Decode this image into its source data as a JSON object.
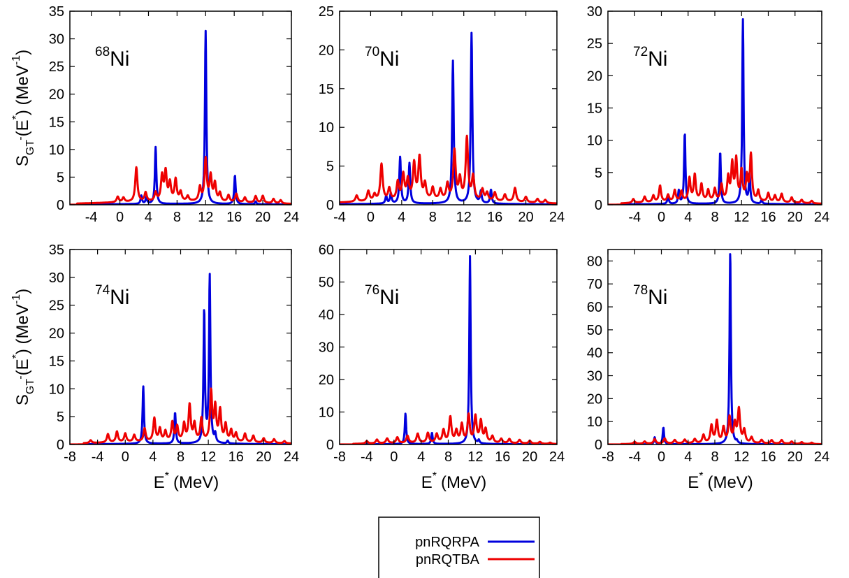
{
  "colors": {
    "pnRQRPA": "#0000dd",
    "pnRQTBA": "#ee0000",
    "axis": "#000000"
  },
  "shared": {
    "ylabel_main": "S",
    "ylabel_sub": "GT",
    "ylabel_sup": "-",
    "ylabel_rest": "(E",
    "ylabel_star": "*",
    "ylabel_unit": ") (MeV",
    "ylabel_unit_sup": "-1",
    "ylabel_close": ")",
    "xlabel_main": "E",
    "xlabel_star": "*",
    "xlabel_unit": "(MeV)"
  },
  "legend": {
    "entries": [
      {
        "label": "pnRQRPA",
        "series": "pnRQRPA"
      },
      {
        "label": "pnRQTBA",
        "series": "pnRQTBA"
      }
    ]
  },
  "chart_data": [
    {
      "type": "line",
      "nucleus_mass": "68",
      "nucleus_symbol": "Ni",
      "xlim": [
        -7,
        24
      ],
      "ylim": [
        0,
        35
      ],
      "xticks": [
        "-4",
        "0",
        "4",
        "8",
        "12",
        "16",
        "20",
        "24"
      ],
      "yticks": [
        "0",
        "5",
        "10",
        "15",
        "20",
        "25",
        "30",
        "35"
      ],
      "show_ylabel": true,
      "show_xlabel": false,
      "series": [
        {
          "name": "pnRQRPA",
          "width": 0.12,
          "base": 0.15,
          "peaks": [
            [
              3.0,
              1.5
            ],
            [
              3.7,
              1.2
            ],
            [
              5.0,
              10.3
            ],
            [
              12.0,
              31.3
            ],
            [
              16.1,
              5.2
            ],
            [
              19.0,
              0.5
            ]
          ]
        },
        {
          "name": "pnRQTBA",
          "width": 0.18,
          "base": 0.6,
          "peaks": [
            [
              -0.3,
              1.0
            ],
            [
              0.5,
              0.8
            ],
            [
              2.3,
              6.2
            ],
            [
              3.6,
              1.6
            ],
            [
              5.0,
              1.5
            ],
            [
              5.9,
              4.5
            ],
            [
              6.4,
              5.2
            ],
            [
              7.0,
              3.2
            ],
            [
              7.8,
              3.9
            ],
            [
              8.5,
              1.6
            ],
            [
              9.5,
              0.9
            ],
            [
              11.2,
              2.5
            ],
            [
              12.0,
              7.6
            ],
            [
              12.7,
              4.5
            ],
            [
              13.3,
              3.2
            ],
            [
              14.0,
              1.5
            ],
            [
              15.2,
              1.2
            ],
            [
              16.3,
              1.5
            ],
            [
              17.5,
              0.9
            ],
            [
              19.0,
              1.2
            ],
            [
              20.0,
              1.3
            ],
            [
              21.5,
              0.8
            ],
            [
              22.5,
              0.6
            ]
          ]
        }
      ]
    },
    {
      "type": "line",
      "nucleus_mass": "70",
      "nucleus_symbol": "Ni",
      "xlim": [
        -4,
        24
      ],
      "ylim": [
        0,
        25
      ],
      "xticks": [
        "-4",
        "0",
        "4",
        "8",
        "12",
        "16",
        "20",
        "24"
      ],
      "yticks": [
        "0",
        "5",
        "10",
        "15",
        "20",
        "25"
      ],
      "show_ylabel": false,
      "show_xlabel": false,
      "series": [
        {
          "name": "pnRQRPA",
          "width": 0.12,
          "base": 0.15,
          "peaks": [
            [
              2.0,
              1.0
            ],
            [
              2.6,
              1.3
            ],
            [
              3.8,
              6.0
            ],
            [
              5.0,
              5.2
            ],
            [
              10.6,
              18.4
            ],
            [
              13.0,
              22.0
            ],
            [
              14.2,
              1.5
            ],
            [
              15.5,
              1.8
            ]
          ]
        },
        {
          "name": "pnRQTBA",
          "width": 0.18,
          "base": 0.6,
          "peaks": [
            [
              -1.8,
              0.8
            ],
            [
              -0.3,
              1.3
            ],
            [
              0.5,
              0.8
            ],
            [
              1.4,
              4.7
            ],
            [
              2.4,
              1.5
            ],
            [
              3.5,
              2.3
            ],
            [
              4.2,
              3.2
            ],
            [
              4.8,
              2.5
            ],
            [
              5.6,
              4.6
            ],
            [
              6.3,
              5.4
            ],
            [
              7.0,
              2.0
            ],
            [
              8.0,
              1.5
            ],
            [
              9.0,
              1.3
            ],
            [
              9.9,
              2.0
            ],
            [
              10.8,
              6.3
            ],
            [
              11.5,
              2.6
            ],
            [
              12.4,
              8.0
            ],
            [
              13.2,
              3.0
            ],
            [
              14.4,
              1.4
            ],
            [
              15.0,
              1.0
            ],
            [
              16.0,
              1.1
            ],
            [
              17.3,
              0.9
            ],
            [
              18.6,
              1.8
            ],
            [
              20.0,
              0.7
            ],
            [
              21.5,
              0.5
            ],
            [
              22.5,
              0.4
            ]
          ]
        }
      ]
    },
    {
      "type": "line",
      "nucleus_mass": "72",
      "nucleus_symbol": "Ni",
      "xlim": [
        -8,
        24
      ],
      "ylim": [
        0,
        30
      ],
      "xticks": [
        "-4",
        "0",
        "4",
        "8",
        "12",
        "16",
        "20",
        "24"
      ],
      "yticks": [
        "0",
        "5",
        "10",
        "15",
        "20",
        "25",
        "30"
      ],
      "show_ylabel": false,
      "show_xlabel": false,
      "series": [
        {
          "name": "pnRQRPA",
          "width": 0.12,
          "base": 0.15,
          "peaks": [
            [
              1.0,
              1.3
            ],
            [
              2.6,
              2.0
            ],
            [
              3.5,
              11.0
            ],
            [
              8.8,
              8.0
            ],
            [
              12.2,
              28.6
            ],
            [
              13.2,
              4.5
            ],
            [
              15.0,
              0.6
            ]
          ]
        },
        {
          "name": "pnRQTBA",
          "width": 0.18,
          "base": 0.6,
          "peaks": [
            [
              -4.2,
              0.6
            ],
            [
              -2.5,
              0.9
            ],
            [
              -1.2,
              1.0
            ],
            [
              -0.2,
              2.5
            ],
            [
              1.0,
              1.0
            ],
            [
              2.0,
              1.7
            ],
            [
              3.0,
              1.5
            ],
            [
              4.2,
              3.5
            ],
            [
              5.0,
              4.0
            ],
            [
              6.0,
              2.5
            ],
            [
              7.0,
              1.6
            ],
            [
              8.0,
              1.8
            ],
            [
              9.0,
              2.4
            ],
            [
              10.0,
              3.5
            ],
            [
              10.6,
              5.5
            ],
            [
              11.2,
              6.2
            ],
            [
              12.0,
              4.5
            ],
            [
              12.8,
              3.6
            ],
            [
              13.4,
              7.1
            ],
            [
              14.5,
              1.6
            ],
            [
              16.0,
              1.3
            ],
            [
              17.0,
              1.0
            ],
            [
              18.0,
              1.3
            ],
            [
              19.5,
              0.8
            ],
            [
              21.0,
              0.5
            ],
            [
              22.5,
              0.4
            ]
          ]
        }
      ]
    },
    {
      "type": "line",
      "nucleus_mass": "74",
      "nucleus_symbol": "Ni",
      "xlim": [
        -8,
        24
      ],
      "ylim": [
        0,
        35
      ],
      "xticks": [
        "-8",
        "-4",
        "0",
        "4",
        "8",
        "12",
        "16",
        "20",
        "24"
      ],
      "yticks": [
        "0",
        "5",
        "10",
        "15",
        "20",
        "25",
        "30",
        "35"
      ],
      "show_ylabel": true,
      "show_xlabel": true,
      "series": [
        {
          "name": "pnRQRPA",
          "width": 0.12,
          "base": 0.15,
          "peaks": [
            [
              2.6,
              10.3
            ],
            [
              7.2,
              5.6
            ],
            [
              11.4,
              23.8
            ],
            [
              12.2,
              30.0
            ],
            [
              13.0,
              1.5
            ],
            [
              14.8,
              0.5
            ]
          ]
        },
        {
          "name": "pnRQTBA",
          "width": 0.18,
          "base": 0.6,
          "peaks": [
            [
              -5.0,
              0.5
            ],
            [
              -2.5,
              1.5
            ],
            [
              -1.2,
              1.9
            ],
            [
              0.0,
              1.5
            ],
            [
              1.3,
              1.2
            ],
            [
              2.8,
              2.3
            ],
            [
              4.2,
              4.1
            ],
            [
              5.0,
              2.2
            ],
            [
              5.8,
              1.7
            ],
            [
              6.8,
              3.3
            ],
            [
              7.5,
              2.5
            ],
            [
              8.5,
              3.0
            ],
            [
              9.3,
              6.4
            ],
            [
              10.0,
              3.0
            ],
            [
              11.0,
              4.0
            ],
            [
              12.4,
              8.8
            ],
            [
              13.0,
              6.0
            ],
            [
              13.7,
              5.5
            ],
            [
              14.5,
              3.0
            ],
            [
              15.3,
              2.0
            ],
            [
              16.0,
              1.5
            ],
            [
              17.3,
              1.5
            ],
            [
              18.5,
              1.2
            ],
            [
              20.0,
              0.8
            ],
            [
              21.5,
              0.7
            ],
            [
              23.0,
              0.4
            ]
          ]
        }
      ]
    },
    {
      "type": "line",
      "nucleus_mass": "76",
      "nucleus_symbol": "Ni",
      "xlim": [
        -8,
        24
      ],
      "ylim": [
        0,
        60
      ],
      "xticks": [
        "-8",
        "-4",
        "0",
        "4",
        "8",
        "12",
        "16",
        "20",
        "24"
      ],
      "yticks": [
        "0",
        "10",
        "20",
        "30",
        "40",
        "50",
        "60"
      ],
      "show_ylabel": false,
      "show_xlabel": true,
      "series": [
        {
          "name": "pnRQRPA",
          "width": 0.12,
          "base": 0.15,
          "peaks": [
            [
              1.7,
              9.4
            ],
            [
              5.6,
              3.5
            ],
            [
              11.2,
              57.8
            ],
            [
              12.5,
              1.0
            ]
          ]
        },
        {
          "name": "pnRQTBA",
          "width": 0.2,
          "base": 0.5,
          "peaks": [
            [
              -4.0,
              0.8
            ],
            [
              -2.5,
              1.2
            ],
            [
              -1.0,
              1.5
            ],
            [
              0.5,
              1.8
            ],
            [
              2.0,
              2.2
            ],
            [
              3.5,
              2.8
            ],
            [
              5.0,
              3.0
            ],
            [
              6.3,
              2.6
            ],
            [
              7.3,
              3.8
            ],
            [
              8.3,
              7.8
            ],
            [
              9.2,
              3.5
            ],
            [
              10.0,
              5.5
            ],
            [
              11.0,
              8.4
            ],
            [
              12.0,
              8.0
            ],
            [
              12.8,
              6.5
            ],
            [
              13.5,
              4.0
            ],
            [
              14.5,
              2.0
            ],
            [
              15.8,
              1.3
            ],
            [
              17.0,
              1.3
            ],
            [
              18.5,
              1.1
            ],
            [
              20.0,
              0.9
            ],
            [
              21.5,
              0.6
            ],
            [
              23.0,
              0.4
            ]
          ]
        }
      ]
    },
    {
      "type": "line",
      "nucleus_mass": "78",
      "nucleus_symbol": "Ni",
      "xlim": [
        -8,
        24
      ],
      "ylim": [
        0,
        85
      ],
      "xticks": [
        "-8",
        "-4",
        "0",
        "4",
        "8",
        "12",
        "16",
        "20",
        "24"
      ],
      "yticks": [
        "0",
        "10",
        "20",
        "30",
        "40",
        "50",
        "60",
        "70",
        "80"
      ],
      "show_ylabel": false,
      "show_xlabel": true,
      "series": [
        {
          "name": "pnRQRPA",
          "width": 0.12,
          "base": 0.15,
          "peaks": [
            [
              -1.0,
              3.0
            ],
            [
              0.3,
              7.3
            ],
            [
              10.3,
              84.0
            ],
            [
              11.3,
              1.0
            ]
          ]
        },
        {
          "name": "pnRQTBA",
          "width": 0.2,
          "base": 0.5,
          "peaks": [
            [
              -4.0,
              0.9
            ],
            [
              -2.5,
              1.0
            ],
            [
              -1.0,
              2.0
            ],
            [
              0.5,
              2.2
            ],
            [
              2.0,
              1.5
            ],
            [
              3.5,
              1.6
            ],
            [
              5.0,
              1.8
            ],
            [
              6.3,
              3.5
            ],
            [
              7.5,
              7.5
            ],
            [
              8.3,
              9.5
            ],
            [
              9.3,
              6.5
            ],
            [
              10.2,
              11.0
            ],
            [
              11.0,
              8.0
            ],
            [
              11.6,
              14.5
            ],
            [
              12.4,
              5.5
            ],
            [
              13.5,
              2.5
            ],
            [
              15.0,
              1.5
            ],
            [
              16.5,
              1.5
            ],
            [
              18.0,
              1.6
            ],
            [
              19.5,
              1.0
            ],
            [
              21.0,
              0.8
            ],
            [
              22.5,
              0.6
            ]
          ]
        }
      ]
    }
  ]
}
